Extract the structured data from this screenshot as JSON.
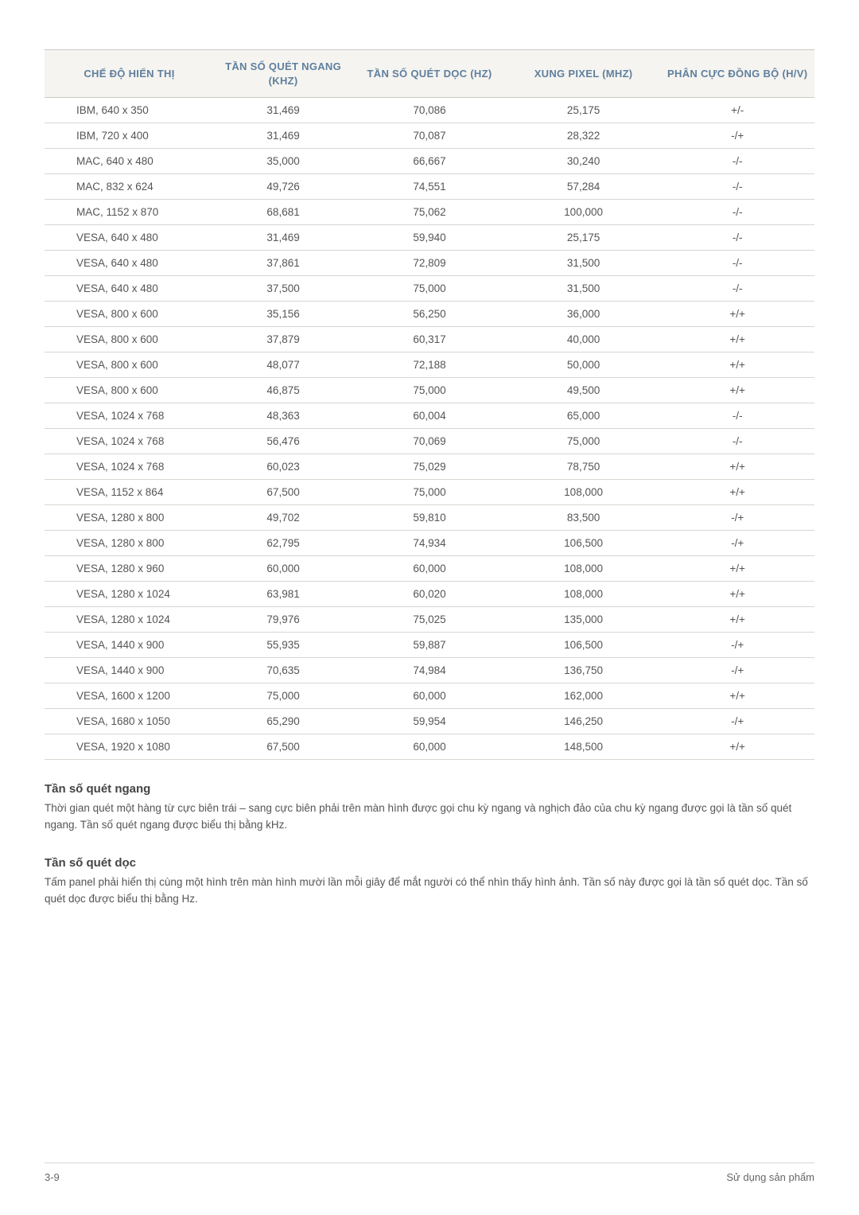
{
  "table": {
    "columns": [
      "CHẾ ĐỘ HIỂN THỊ",
      "TẦN SỐ QUÉT NGANG (KHZ)",
      "TẦN SỐ QUÉT DỌC (HZ)",
      "XUNG PIXEL (MHZ)",
      "PHÂN CỰC ĐỒNG BỘ (H/V)"
    ],
    "column_widths_pct": [
      22,
      18,
      20,
      20,
      20
    ],
    "header_bg": "#f5f4f0",
    "header_color": "#5f7f9e",
    "border_color": "#c9c9c6",
    "row_border_color": "#d6d6d2",
    "cell_color": "#555555",
    "cell_fontsize": 13.5,
    "header_fontsize": 13,
    "rows": [
      [
        "IBM, 640 x 350",
        "31,469",
        "70,086",
        "25,175",
        "+/-"
      ],
      [
        "IBM, 720 x 400",
        "31,469",
        "70,087",
        "28,322",
        "-/+"
      ],
      [
        "MAC, 640 x 480",
        "35,000",
        "66,667",
        "30,240",
        "-/-"
      ],
      [
        "MAC, 832 x 624",
        "49,726",
        "74,551",
        "57,284",
        "-/-"
      ],
      [
        "MAC, 1152 x 870",
        "68,681",
        "75,062",
        "100,000",
        "-/-"
      ],
      [
        "VESA, 640 x 480",
        "31,469",
        "59,940",
        "25,175",
        "-/-"
      ],
      [
        "VESA, 640 x 480",
        "37,861",
        "72,809",
        "31,500",
        "-/-"
      ],
      [
        "VESA, 640 x 480",
        "37,500",
        "75,000",
        "31,500",
        "-/-"
      ],
      [
        "VESA, 800 x 600",
        "35,156",
        "56,250",
        "36,000",
        "+/+"
      ],
      [
        "VESA, 800 x 600",
        "37,879",
        "60,317",
        "40,000",
        "+/+"
      ],
      [
        "VESA, 800 x 600",
        "48,077",
        "72,188",
        "50,000",
        "+/+"
      ],
      [
        "VESA, 800 x 600",
        "46,875",
        "75,000",
        "49,500",
        "+/+"
      ],
      [
        "VESA, 1024 x 768",
        "48,363",
        "60,004",
        "65,000",
        "-/-"
      ],
      [
        "VESA, 1024 x 768",
        "56,476",
        "70,069",
        "75,000",
        "-/-"
      ],
      [
        "VESA, 1024 x 768",
        "60,023",
        "75,029",
        "78,750",
        "+/+"
      ],
      [
        "VESA, 1152 x 864",
        "67,500",
        "75,000",
        "108,000",
        "+/+"
      ],
      [
        "VESA, 1280 x 800",
        "49,702",
        "59,810",
        "83,500",
        "-/+"
      ],
      [
        "VESA, 1280 x 800",
        "62,795",
        "74,934",
        "106,500",
        "-/+"
      ],
      [
        "VESA, 1280 x 960",
        "60,000",
        "60,000",
        "108,000",
        "+/+"
      ],
      [
        "VESA, 1280 x 1024",
        "63,981",
        "60,020",
        "108,000",
        "+/+"
      ],
      [
        "VESA, 1280 x 1024",
        "79,976",
        "75,025",
        "135,000",
        "+/+"
      ],
      [
        "VESA, 1440 x 900",
        "55,935",
        "59,887",
        "106,500",
        "-/+"
      ],
      [
        "VESA, 1440 x 900",
        "70,635",
        "74,984",
        "136,750",
        "-/+"
      ],
      [
        "VESA, 1600 x 1200",
        "75,000",
        "60,000",
        "162,000",
        "+/+"
      ],
      [
        "VESA, 1680 x 1050",
        "65,290",
        "59,954",
        "146,250",
        "-/+"
      ],
      [
        "VESA, 1920 x 1080",
        "67,500",
        "60,000",
        "148,500",
        "+/+"
      ]
    ]
  },
  "sections": {
    "h_title": "Tần số quét ngang",
    "h_body": "Thời gian quét một hàng từ cực biên trái – sang cực biên phải trên màn hình được gọi chu kỳ ngang và nghịch đảo của chu kỳ ngang được gọi là tần số quét ngang. Tần số quét ngang được biểu thị bằng kHz.",
    "v_title": "Tần số quét dọc",
    "v_body": "Tấm panel phải hiển thị cùng một hình trên màn hình mười lần mỗi giây để mắt người có thể nhìn thấy hình ảnh. Tần số này được gọi là tần số quét dọc. Tần số quét dọc được biểu thị bằng Hz."
  },
  "footer": {
    "left": "3-9",
    "right": "Sử dụng sản phẩm"
  },
  "page_background": "#ffffff"
}
